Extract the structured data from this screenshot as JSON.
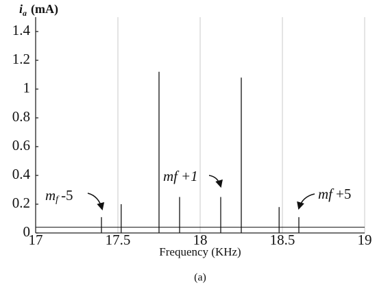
{
  "chart_data": {
    "type": "spectrum",
    "ylabel": {
      "symbol": "i",
      "sub": "a",
      "unit": "(mA)"
    },
    "xlabel": "Frequency (KHz)",
    "caption": "(a)",
    "annotations": [
      [
        "m",
        "f",
        "-5"
      ],
      [
        "mf",
        "",
        "+1"
      ],
      [
        "mf",
        "",
        "+5"
      ]
    ],
    "x": [
      17.4,
      17.52,
      17.75,
      17.875,
      18.125,
      18.25,
      18.48,
      18.6
    ],
    "values": [
      0.11,
      0.2,
      1.12,
      0.25,
      0.25,
      1.08,
      0.18,
      0.11
    ],
    "noise_floor": 0.04,
    "color": "#111111",
    "xlim": [
      17,
      19
    ],
    "xticks": [
      17,
      17.5,
      18,
      18.5,
      19
    ],
    "ylim": [
      0,
      1.5
    ],
    "yticks": [
      0,
      0.2,
      0.4,
      0.6,
      0.8,
      1,
      1.2,
      1.4
    ],
    "grid": true
  }
}
